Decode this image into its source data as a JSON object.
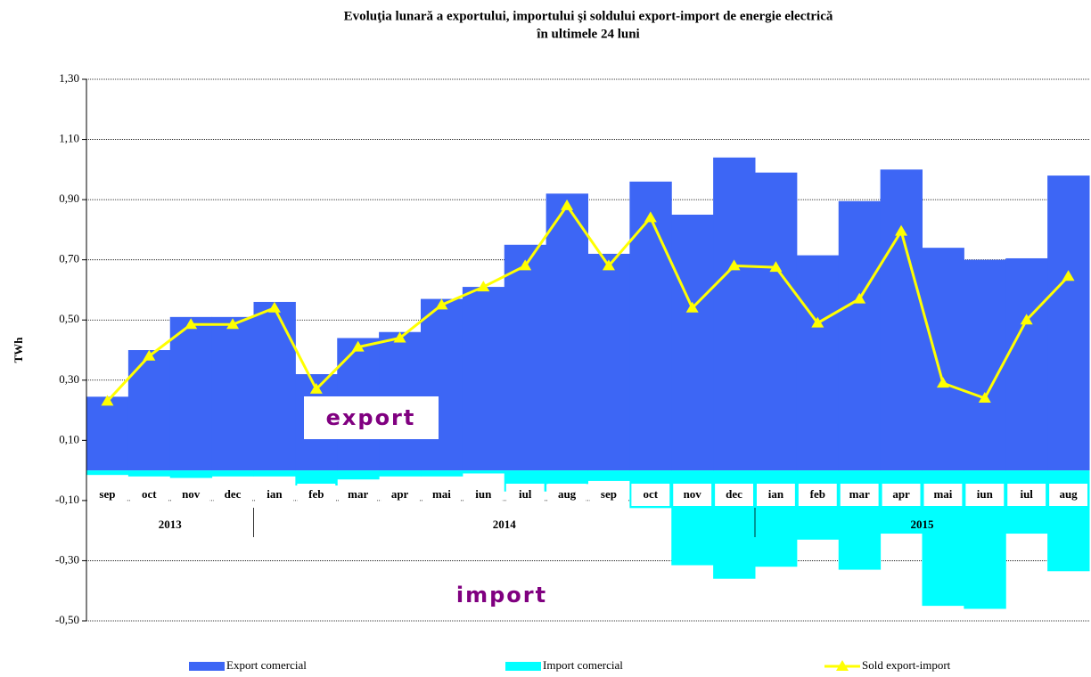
{
  "chart_data": {
    "type": "bar-line",
    "title": "Evoluţia lunară a exportului, importului şi soldului export-import de energie electrică",
    "subtitle": "în ultimele 24 luni",
    "y_label": "TWh",
    "categories": [
      "sep",
      "oct",
      "nov",
      "dec",
      "ian",
      "feb",
      "mar",
      "apr",
      "mai",
      "iun",
      "iul",
      "aug",
      "sep",
      "oct",
      "nov",
      "dec",
      "ian",
      "feb",
      "mar",
      "apr",
      "mai",
      "iun",
      "iul",
      "aug"
    ],
    "groups": [
      {
        "label": "2013",
        "count": 4
      },
      {
        "label": "2014",
        "count": 12
      },
      {
        "label": "2015",
        "count": 8
      }
    ],
    "series": [
      {
        "name": "Export comercial",
        "color": "#3d66f5",
        "kind": "bar",
        "values": [
          0.245,
          0.4,
          0.51,
          0.51,
          0.56,
          0.32,
          0.44,
          0.46,
          0.57,
          0.61,
          0.75,
          0.92,
          0.72,
          0.96,
          0.85,
          1.04,
          0.99,
          0.715,
          0.895,
          1.0,
          0.74,
          0.7,
          0.705,
          0.98
        ]
      },
      {
        "name": "Import comercial",
        "color": "#00ffff",
        "kind": "bar",
        "values": [
          -0.015,
          -0.02,
          -0.025,
          -0.02,
          -0.02,
          -0.05,
          -0.03,
          -0.02,
          -0.02,
          -0.01,
          -0.07,
          -0.045,
          -0.035,
          -0.125,
          -0.315,
          -0.36,
          -0.32,
          -0.23,
          -0.33,
          -0.21,
          -0.45,
          -0.46,
          -0.21,
          -0.335
        ]
      },
      {
        "name": "Sold export-import",
        "color": "#ffff00",
        "kind": "line",
        "values": [
          0.23,
          0.38,
          0.485,
          0.485,
          0.54,
          0.27,
          0.41,
          0.44,
          0.55,
          0.61,
          0.68,
          0.88,
          0.68,
          0.84,
          0.54,
          0.68,
          0.675,
          0.49,
          0.57,
          0.795,
          0.29,
          0.24,
          0.5,
          0.645
        ]
      }
    ],
    "annotations": [
      "export",
      "import"
    ],
    "ylim": [
      -0.5,
      1.3
    ],
    "yticks": [
      {
        "value": -0.5,
        "label": "-0,50"
      },
      {
        "value": -0.3,
        "label": "-0,30"
      },
      {
        "value": -0.1,
        "label": "-0,10"
      },
      {
        "value": 0.1,
        "label": "0,10"
      },
      {
        "value": 0.3,
        "label": "0,30"
      },
      {
        "value": 0.5,
        "label": "0,50"
      },
      {
        "value": 0.7,
        "label": "0,70"
      },
      {
        "value": 0.9,
        "label": "0,90"
      },
      {
        "value": 1.1,
        "label": "1,10"
      },
      {
        "value": 1.3,
        "label": "1,30"
      }
    ],
    "grid": true
  }
}
